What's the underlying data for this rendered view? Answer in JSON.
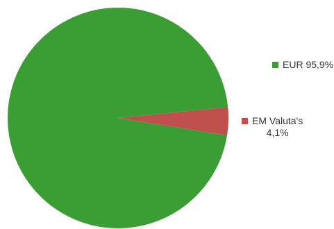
{
  "chart_data": {
    "type": "pie",
    "slices": [
      {
        "label": "EUR",
        "value": 95.9,
        "display": "95,9%",
        "color": "#3a9e34"
      },
      {
        "label": "EM Valuta's",
        "value": 4.1,
        "display": "4,1%",
        "color": "#c0504d"
      }
    ],
    "start_angle_deg": 0,
    "direction": "clockwise",
    "legend_position": "right",
    "legend": {
      "eur_text": "EUR 95,9%",
      "em_label": "EM Valuta's",
      "em_pct": "4,1%"
    }
  }
}
